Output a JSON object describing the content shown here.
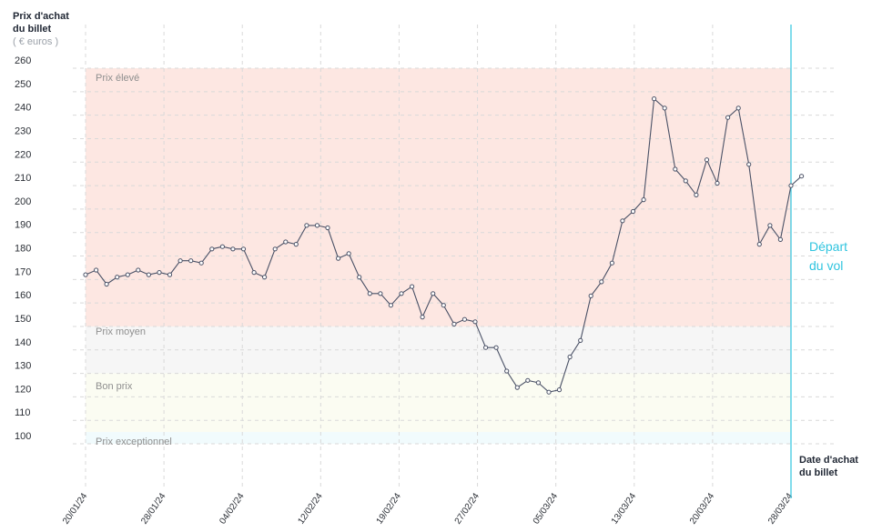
{
  "chart_data": {
    "type": "line",
    "ylabel_line1": "Prix d'achat",
    "ylabel_line2": "du billet",
    "yunit": "( € euros )",
    "xlabel_line1": "Date d'achat",
    "xlabel_line2": "du billet",
    "ylim": [
      100,
      260
    ],
    "yticks": [
      100,
      110,
      120,
      130,
      140,
      150,
      160,
      170,
      180,
      190,
      200,
      210,
      220,
      230,
      240,
      250,
      260
    ],
    "xticks": [
      "20/01/24",
      "28/01/24",
      "04/02/24",
      "12/02/24",
      "19/02/24",
      "27/02/24",
      "05/03/24",
      "13/03/24",
      "20/03/24",
      "28/03/24"
    ],
    "departure": {
      "label_line1": "Départ",
      "label_line2": "du vol"
    },
    "zones": [
      {
        "name": "Prix élevé",
        "from": 150,
        "to": 260,
        "color": "#fde7e2"
      },
      {
        "name": "Prix moyen",
        "from": 130,
        "to": 150,
        "color": "#f6f6f6"
      },
      {
        "name": "Bon prix",
        "from": 105,
        "to": 130,
        "color": "#fbfcf2"
      },
      {
        "name": "Prix exceptionnel",
        "from": 100,
        "to": 105,
        "color": "#f1fbfd"
      }
    ],
    "colors": {
      "line": "#4a5166",
      "departure": "#2fc4df",
      "grid": "#d9d9d9"
    },
    "grid": true,
    "series": [
      {
        "values": [
          172,
          174,
          168,
          171,
          172,
          174,
          172,
          173,
          172,
          178,
          178,
          177,
          183,
          184,
          183,
          183,
          173,
          171,
          183,
          186,
          185,
          193,
          193,
          192,
          179,
          181,
          171,
          164,
          164,
          159,
          164,
          167,
          154,
          164,
          159,
          151,
          153,
          152,
          141,
          141,
          131,
          124,
          127,
          126,
          122,
          123,
          137,
          144,
          163,
          169,
          177,
          195,
          199,
          204,
          247,
          243,
          217,
          212,
          206,
          221,
          211,
          239,
          243,
          219,
          185,
          193,
          187,
          210,
          214
        ]
      }
    ]
  }
}
